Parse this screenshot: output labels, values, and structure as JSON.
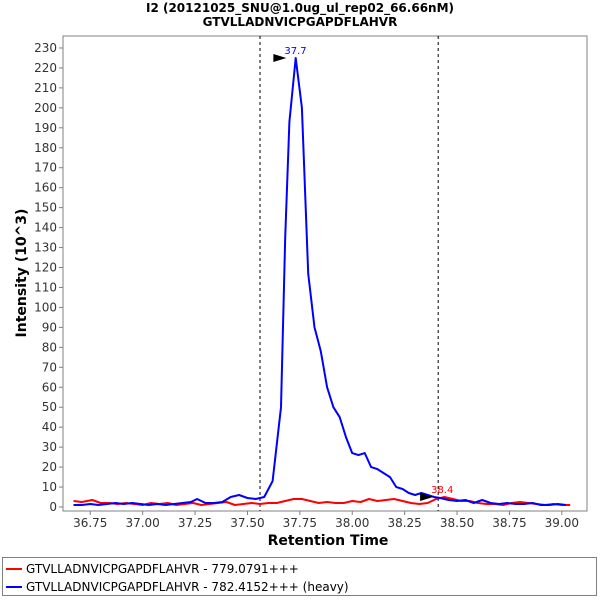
{
  "chart_data": {
    "type": "line",
    "title": "I2 (20121025_SNU@1.0ug_ul_rep02_66.66nM)",
    "subtitle": "GTVLLADNVICPGAPDFLAHVR",
    "xlabel": "Retention Time",
    "ylabel": "Intensity (10^3)",
    "xlim": [
      36.62,
      39.12
    ],
    "ylim": [
      -2,
      236
    ],
    "xticks": [
      36.75,
      37.0,
      37.25,
      37.5,
      37.75,
      38.0,
      38.25,
      38.5,
      38.75,
      39.0
    ],
    "xtick_labels": [
      "36.75",
      "37.00",
      "37.25",
      "37.50",
      "37.75",
      "38.00",
      "38.25",
      "38.50",
      "38.75",
      "39.00"
    ],
    "yticks": [
      0,
      10,
      20,
      30,
      40,
      50,
      60,
      70,
      80,
      90,
      100,
      110,
      120,
      130,
      140,
      150,
      160,
      170,
      180,
      190,
      200,
      210,
      220,
      230
    ],
    "ytick_labels": [
      "0",
      "10",
      "20",
      "30",
      "40",
      "50",
      "60",
      "70",
      "80",
      "90",
      "100",
      "110",
      "120",
      "130",
      "140",
      "150",
      "160",
      "170",
      "180",
      "190",
      "200",
      "210",
      "220",
      "230"
    ],
    "vlines": [
      37.56,
      38.41
    ],
    "grid": false,
    "legend_position": "bottom",
    "series": [
      {
        "name": "GTVLLADNVICPGAPDFLAHVR - 779.0791+++",
        "color": "#ff0000",
        "x": [
          36.67,
          36.71,
          36.76,
          36.8,
          36.84,
          36.88,
          36.92,
          36.96,
          37.0,
          37.04,
          37.08,
          37.12,
          37.16,
          37.2,
          37.24,
          37.28,
          37.32,
          37.36,
          37.4,
          37.44,
          37.48,
          37.52,
          37.56,
          37.6,
          37.64,
          37.68,
          37.72,
          37.76,
          37.8,
          37.84,
          37.88,
          37.92,
          37.96,
          38.0,
          38.04,
          38.08,
          38.12,
          38.16,
          38.2,
          38.24,
          38.28,
          38.32,
          38.36,
          38.4,
          38.44,
          38.48,
          38.52,
          38.56,
          38.6,
          38.64,
          38.68,
          38.72,
          38.76,
          38.8,
          38.84,
          38.88,
          38.92,
          38.96,
          39.0,
          39.04
        ],
        "values": [
          3,
          2.5,
          3.5,
          2,
          2,
          1.5,
          2,
          1.5,
          1,
          2,
          1.5,
          2,
          1,
          1.5,
          2,
          1,
          1.5,
          2,
          2.5,
          1,
          1.5,
          2,
          1.5,
          2,
          2,
          3,
          4,
          4,
          3,
          2,
          2.5,
          2,
          2,
          3,
          2.5,
          4,
          3,
          3.5,
          4,
          3,
          2,
          1.5,
          2,
          4,
          5,
          4,
          3,
          3,
          2,
          1.5,
          1.5,
          1,
          2,
          2.5,
          2,
          1.5,
          1,
          1.5,
          1,
          1
        ],
        "peak": {
          "x": 38.4,
          "y": 5,
          "label": "38.4"
        }
      },
      {
        "name": "GTVLLADNVICPGAPDFLAHVR - 782.4152+++ (heavy)",
        "color": "#0000ff",
        "x": [
          36.67,
          36.71,
          36.75,
          36.79,
          36.83,
          36.87,
          36.91,
          36.95,
          36.99,
          37.03,
          37.07,
          37.11,
          37.15,
          37.19,
          37.23,
          37.26,
          37.3,
          37.34,
          37.38,
          37.42,
          37.46,
          37.5,
          37.54,
          37.58,
          37.62,
          37.66,
          37.68,
          37.7,
          37.73,
          37.76,
          37.79,
          37.82,
          37.85,
          37.88,
          37.91,
          37.94,
          37.97,
          38.0,
          38.03,
          38.06,
          38.09,
          38.12,
          38.15,
          38.18,
          38.21,
          38.24,
          38.27,
          38.3,
          38.33,
          38.36,
          38.39,
          38.42,
          38.46,
          38.5,
          38.54,
          38.58,
          38.62,
          38.66,
          38.7,
          38.74,
          38.78,
          38.82,
          38.86,
          38.9,
          38.94,
          38.98,
          39.02
        ],
        "values": [
          1,
          1,
          1.5,
          1,
          1.5,
          2,
          1.5,
          2,
          1.5,
          1,
          1.5,
          1,
          1.5,
          2,
          2.5,
          4,
          2,
          2,
          2.5,
          5,
          6,
          4.5,
          4,
          5,
          13,
          50,
          135,
          193,
          225,
          200,
          117,
          90,
          78,
          60,
          50,
          45,
          35,
          27,
          26,
          27,
          20,
          19,
          17,
          15,
          10,
          9,
          7,
          6,
          7,
          6,
          5,
          4.5,
          3.5,
          3,
          3.5,
          2,
          3.5,
          2,
          1.5,
          2,
          1.5,
          1.5,
          2,
          1,
          1,
          1.5,
          1
        ],
        "peak": {
          "x": 37.7,
          "y": 225,
          "label": "37.7"
        }
      }
    ]
  }
}
